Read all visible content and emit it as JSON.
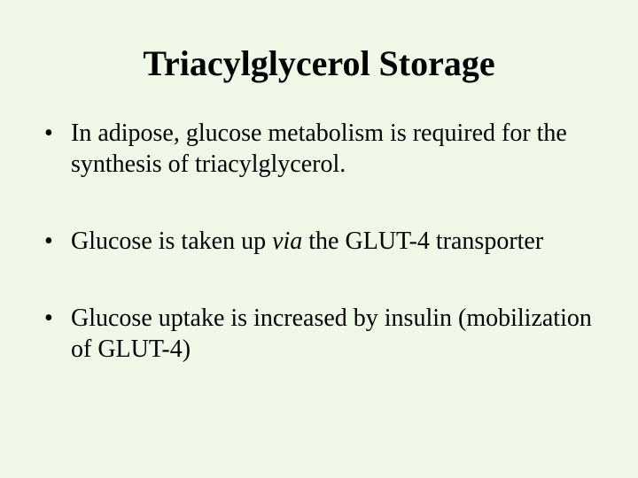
{
  "slide": {
    "background_color": "#f0f8e8",
    "text_color": "#000000",
    "title": {
      "text": "Triacylglycerol Storage",
      "fontsize": 40,
      "fontweight": "bold",
      "align": "center"
    },
    "bullets": [
      {
        "text": "In adipose, glucose metabolism is required for the synthesis of triacylglycerol."
      },
      {
        "prefix": "Glucose is taken up ",
        "italic": "via",
        "suffix": " the GLUT-4 transporter"
      },
      {
        "text": "Glucose uptake is increased by insulin (mobilization of GLUT-4)"
      }
    ],
    "bullet_fontsize": 28,
    "font_family": "Times New Roman"
  }
}
